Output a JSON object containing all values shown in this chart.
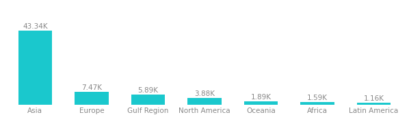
{
  "categories": [
    "Asia",
    "Europe",
    "Gulf Region",
    "North America",
    "Oceania",
    "Africa",
    "Latin America"
  ],
  "values": [
    43.34,
    7.47,
    5.89,
    3.88,
    1.89,
    1.59,
    1.16
  ],
  "labels": [
    "43.34K",
    "7.47K",
    "5.89K",
    "3.88K",
    "1.89K",
    "1.59K",
    "1.16K"
  ],
  "bar_color": "#1AC8CD",
  "background_color": "#ffffff",
  "label_color": "#888888",
  "category_color": "#888888",
  "label_fontsize": 7.5,
  "category_fontsize": 7.5,
  "ylim": [
    0,
    52
  ],
  "bar_width": 0.6,
  "figsize": [
    5.98,
    1.97
  ],
  "dpi": 100
}
